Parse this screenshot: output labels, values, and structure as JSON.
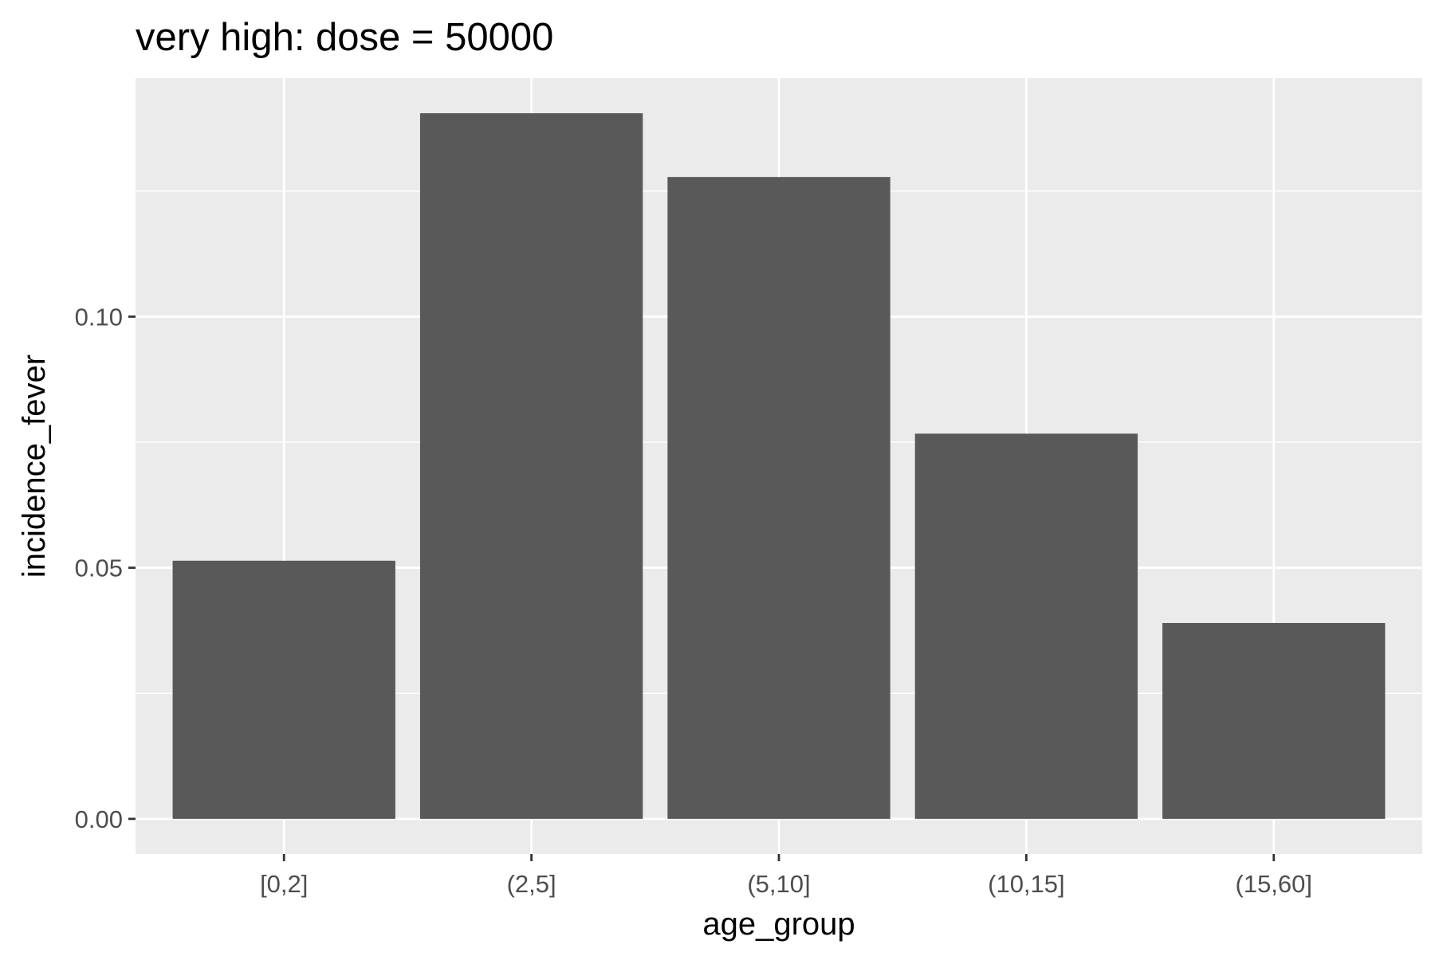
{
  "chart_data": {
    "type": "bar",
    "title": "very high: dose = 50000",
    "xlabel": "age_group",
    "ylabel": "incidence_fever",
    "categories": [
      "[0,2]",
      "(2,5]",
      "(5,10]",
      "(10,15]",
      "(15,60]"
    ],
    "values": [
      0.0514,
      0.1405,
      0.1278,
      0.0767,
      0.039
    ],
    "ylim": [
      -0.007,
      0.1475
    ],
    "y_ticks": [
      0.0,
      0.05,
      0.1
    ],
    "y_tick_labels": [
      "0.00",
      "0.05",
      "0.10"
    ],
    "y_minor_ticks": [
      0.025,
      0.075,
      0.125
    ],
    "grid": true,
    "legend": "none",
    "colors": {
      "bar": "#595959",
      "panel_background": "#ebebeb",
      "grid": "#ffffff",
      "tick_label": "#4d4d4d",
      "tick_mark": "#333333"
    }
  }
}
